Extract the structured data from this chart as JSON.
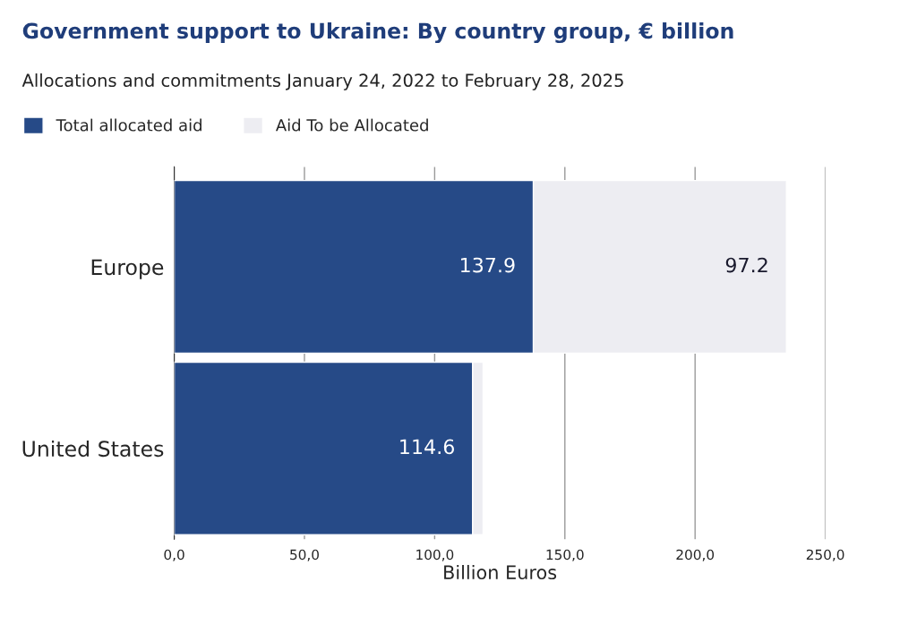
{
  "chart_data": {
    "type": "bar",
    "orientation": "horizontal",
    "stacked": true,
    "title": "Government support to Ukraine: By country group, € billion",
    "subtitle": "Allocations and commitments January 24, 2022 to February 28, 2025",
    "xlabel": "Billion Euros",
    "categories": [
      "Europe",
      "United States"
    ],
    "series": [
      {
        "name": "Total allocated aid",
        "color": "#264a87",
        "values": [
          137.9,
          114.6
        ],
        "value_labels": [
          "137.9",
          "114.6"
        ]
      },
      {
        "name": "Aid To be Allocated",
        "color": "#ededf2",
        "values": [
          97.2,
          4.0
        ],
        "value_labels": [
          "97.2",
          null
        ]
      }
    ],
    "xlim": [
      0,
      250
    ],
    "xticks": [
      {
        "value": 0,
        "label": "0,0"
      },
      {
        "value": 50,
        "label": "50,0"
      },
      {
        "value": 100,
        "label": "100,0"
      },
      {
        "value": 150,
        "label": "150,0"
      },
      {
        "value": 200,
        "label": "200,0"
      },
      {
        "value": 250,
        "label": "250,0"
      }
    ],
    "grid": "x",
    "legend": "top left"
  }
}
